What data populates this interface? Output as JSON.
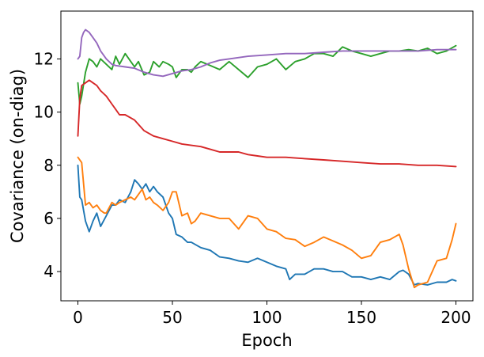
{
  "chart_data": {
    "type": "line",
    "title": "",
    "xlabel": "Epoch",
    "ylabel": "Covariance (on-diag)",
    "xlim": [
      -9,
      209
    ],
    "ylim": [
      2.9,
      13.8
    ],
    "xticks": [
      0,
      50,
      100,
      150,
      200
    ],
    "yticks": [
      4,
      6,
      8,
      10,
      12
    ],
    "grid": false,
    "legend": "none",
    "series": [
      {
        "color": "#1f77b4",
        "x": [
          0,
          1,
          2,
          4,
          6,
          8,
          10,
          12,
          15,
          18,
          20,
          22,
          25,
          28,
          30,
          32,
          34,
          36,
          38,
          40,
          42,
          45,
          48,
          50,
          52,
          55,
          58,
          60,
          65,
          70,
          75,
          80,
          85,
          90,
          95,
          100,
          105,
          110,
          112,
          115,
          120,
          125,
          130,
          135,
          140,
          145,
          150,
          155,
          160,
          165,
          170,
          172,
          175,
          178,
          180,
          185,
          190,
          195,
          198,
          200
        ],
        "y": [
          8.0,
          6.8,
          6.7,
          5.9,
          5.5,
          5.9,
          6.2,
          5.7,
          6.1,
          6.5,
          6.5,
          6.7,
          6.6,
          7.0,
          7.45,
          7.3,
          7.1,
          7.3,
          7.0,
          7.2,
          7.0,
          6.8,
          6.2,
          6.0,
          5.4,
          5.3,
          5.1,
          5.1,
          4.9,
          4.8,
          4.55,
          4.5,
          4.4,
          4.35,
          4.5,
          4.35,
          4.2,
          4.1,
          3.7,
          3.9,
          3.9,
          4.1,
          4.1,
          4.0,
          4.0,
          3.8,
          3.8,
          3.7,
          3.8,
          3.7,
          4.0,
          4.05,
          3.9,
          3.5,
          3.55,
          3.5,
          3.6,
          3.6,
          3.7,
          3.65
        ]
      },
      {
        "color": "#ff7f0e",
        "x": [
          0,
          2,
          4,
          6,
          8,
          10,
          12,
          14,
          15,
          18,
          20,
          22,
          25,
          28,
          30,
          32,
          34,
          36,
          38,
          40,
          42,
          45,
          48,
          50,
          52,
          55,
          58,
          60,
          62,
          65,
          70,
          75,
          80,
          85,
          90,
          95,
          100,
          105,
          110,
          115,
          120,
          125,
          130,
          135,
          140,
          145,
          150,
          155,
          160,
          165,
          170,
          172,
          175,
          178,
          180,
          185,
          190,
          195,
          198,
          200
        ],
        "y": [
          8.3,
          8.1,
          6.5,
          6.6,
          6.4,
          6.5,
          6.3,
          6.2,
          6.2,
          6.6,
          6.5,
          6.6,
          6.7,
          6.8,
          6.7,
          6.9,
          7.1,
          6.7,
          6.8,
          6.6,
          6.5,
          6.3,
          6.6,
          7.0,
          7.0,
          6.1,
          6.2,
          5.8,
          5.9,
          6.2,
          6.1,
          6.0,
          6.0,
          5.6,
          6.1,
          6.0,
          5.6,
          5.5,
          5.25,
          5.2,
          4.95,
          5.1,
          5.3,
          5.15,
          5.0,
          4.8,
          4.5,
          4.6,
          5.1,
          5.2,
          5.4,
          5.0,
          4.1,
          3.4,
          3.5,
          3.6,
          4.4,
          4.5,
          5.2,
          5.8
        ]
      },
      {
        "color": "#2ca02c",
        "x": [
          0,
          1,
          2,
          4,
          6,
          8,
          10,
          12,
          15,
          18,
          20,
          22,
          25,
          28,
          30,
          32,
          35,
          38,
          40,
          43,
          45,
          48,
          50,
          52,
          55,
          58,
          60,
          62,
          65,
          70,
          75,
          80,
          85,
          90,
          95,
          100,
          105,
          110,
          115,
          120,
          125,
          130,
          135,
          140,
          145,
          150,
          155,
          160,
          165,
          170,
          175,
          180,
          185,
          190,
          195,
          200
        ],
        "y": [
          11.1,
          10.3,
          10.6,
          11.5,
          12.0,
          11.9,
          11.7,
          12.0,
          11.8,
          11.6,
          12.1,
          11.8,
          12.2,
          11.9,
          11.7,
          11.9,
          11.4,
          11.5,
          11.9,
          11.7,
          11.9,
          11.8,
          11.7,
          11.3,
          11.6,
          11.6,
          11.5,
          11.7,
          11.9,
          11.75,
          11.6,
          11.9,
          11.6,
          11.3,
          11.7,
          11.8,
          12.0,
          11.6,
          11.9,
          12.0,
          12.2,
          12.2,
          12.1,
          12.45,
          12.3,
          12.2,
          12.1,
          12.2,
          12.3,
          12.3,
          12.35,
          12.3,
          12.4,
          12.2,
          12.3,
          12.5
        ]
      },
      {
        "color": "#d62728",
        "x": [
          0,
          1,
          2,
          4,
          6,
          8,
          10,
          12,
          15,
          18,
          20,
          22,
          25,
          30,
          35,
          40,
          45,
          50,
          55,
          60,
          65,
          70,
          75,
          80,
          85,
          90,
          95,
          100,
          110,
          120,
          130,
          140,
          150,
          160,
          170,
          180,
          190,
          200
        ],
        "y": [
          9.1,
          10.5,
          11.0,
          11.1,
          11.2,
          11.1,
          11.0,
          10.8,
          10.6,
          10.3,
          10.1,
          9.9,
          9.9,
          9.7,
          9.3,
          9.1,
          9.0,
          8.9,
          8.8,
          8.75,
          8.7,
          8.6,
          8.5,
          8.5,
          8.5,
          8.4,
          8.35,
          8.3,
          8.3,
          8.25,
          8.2,
          8.15,
          8.1,
          8.05,
          8.05,
          8.0,
          8.0,
          7.95
        ]
      },
      {
        "color": "#9467bd",
        "x": [
          0,
          1,
          2,
          3,
          4,
          6,
          8,
          10,
          12,
          15,
          18,
          20,
          25,
          30,
          35,
          40,
          45,
          50,
          55,
          60,
          65,
          70,
          75,
          80,
          90,
          100,
          110,
          120,
          130,
          140,
          150,
          160,
          170,
          180,
          190,
          200
        ],
        "y": [
          12.0,
          12.1,
          12.8,
          13.0,
          13.1,
          13.0,
          12.8,
          12.6,
          12.3,
          12.0,
          11.8,
          11.75,
          11.7,
          11.65,
          11.5,
          11.4,
          11.35,
          11.45,
          11.55,
          11.6,
          11.7,
          11.85,
          11.95,
          12.0,
          12.1,
          12.15,
          12.2,
          12.2,
          12.25,
          12.3,
          12.3,
          12.3,
          12.3,
          12.3,
          12.35,
          12.35
        ]
      }
    ]
  }
}
